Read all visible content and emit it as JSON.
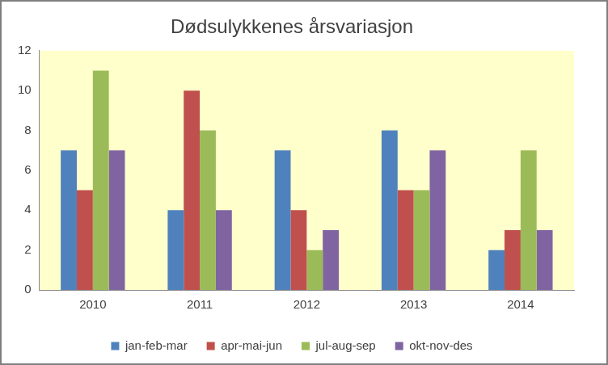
{
  "chart_data": {
    "type": "bar",
    "title": "Dødsulykkenes årsvariasjon",
    "categories": [
      "2010",
      "2011",
      "2012",
      "2013",
      "2014"
    ],
    "series": [
      {
        "name": "jan-feb-mar",
        "color": "#4f81bd",
        "values": [
          7,
          4,
          7,
          8,
          2
        ]
      },
      {
        "name": "apr-mai-jun",
        "color": "#c0504d",
        "values": [
          5,
          10,
          4,
          5,
          3
        ]
      },
      {
        "name": "jul-aug-sep",
        "color": "#9bbb59",
        "values": [
          11,
          8,
          2,
          5,
          7
        ]
      },
      {
        "name": "okt-nov-des",
        "color": "#8064a2",
        "values": [
          7,
          4,
          3,
          7,
          3
        ]
      }
    ],
    "ylim": [
      0,
      12
    ],
    "yticks": [
      0,
      2,
      4,
      6,
      8,
      10,
      12
    ],
    "grid": false,
    "legend": "bottom"
  }
}
